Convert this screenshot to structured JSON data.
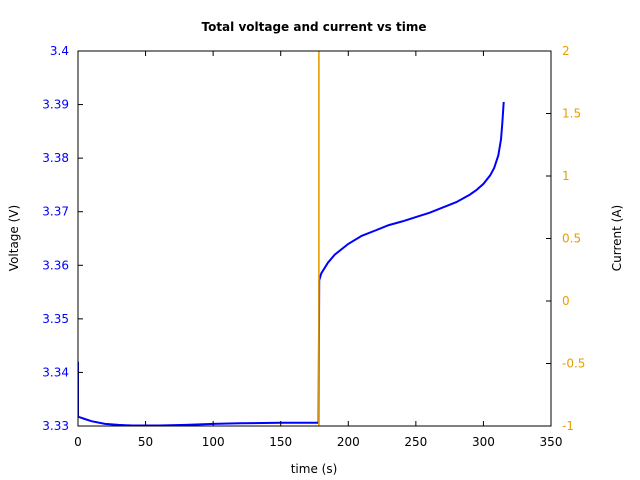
{
  "chart_data": {
    "type": "line",
    "title": "Total voltage and current vs time",
    "xlabel": "time (s)",
    "ylabel": "Voltage (V)",
    "y2label": "Current (A)",
    "xlim": [
      0,
      350
    ],
    "ylim": [
      3.33,
      3.4
    ],
    "y2lim": [
      -1,
      2
    ],
    "grid": false,
    "legend": null,
    "x_ticks": [
      "0",
      "50",
      "100",
      "150",
      "200",
      "250",
      "300",
      "350"
    ],
    "y_ticks": [
      "3.33",
      "3.34",
      "3.35",
      "3.36",
      "3.37",
      "3.38",
      "3.39",
      "3.4"
    ],
    "y2_ticks": [
      "-1",
      "-0.5",
      "0",
      "0.5",
      "1",
      "1.5",
      "2"
    ],
    "colors": {
      "voltage": "#0000ff",
      "current": "#e69f00",
      "left_axis_text": "#0000ff",
      "right_axis_text": "#e69f00"
    },
    "series": [
      {
        "name": "Voltage",
        "axis": "left",
        "x": [
          0,
          0,
          0.5,
          5,
          10,
          20,
          30,
          40,
          60,
          80,
          100,
          120,
          150,
          178,
          178.5,
          180,
          185,
          190,
          200,
          210,
          220,
          230,
          240,
          250,
          260,
          270,
          280,
          290,
          295,
          300,
          305,
          308,
          311,
          313,
          314,
          315
        ],
        "values": [
          3.342,
          3.3318,
          3.3317,
          3.3313,
          3.3309,
          3.3304,
          3.3302,
          3.3301,
          3.3301,
          3.3302,
          3.3304,
          3.3305,
          3.3306,
          3.3306,
          3.3572,
          3.3585,
          3.3605,
          3.362,
          3.364,
          3.3655,
          3.3665,
          3.3675,
          3.3682,
          3.369,
          3.3698,
          3.3708,
          3.3718,
          3.3732,
          3.3741,
          3.3752,
          3.3768,
          3.3782,
          3.3805,
          3.3835,
          3.3865,
          3.3905
        ]
      },
      {
        "name": "Current",
        "axis": "right",
        "x": [
          0,
          178,
          178,
          178.5,
          178.5,
          315
        ],
        "values": [
          -1.2,
          -1.2,
          2.2,
          2.2,
          -1.2,
          -1.2
        ]
      }
    ]
  }
}
